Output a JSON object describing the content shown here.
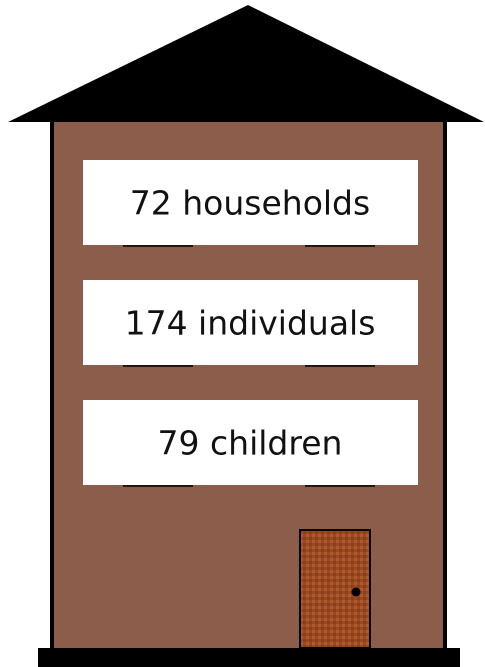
{
  "labels": [
    "72 households",
    "174 individuals",
    "79 children"
  ]
}
